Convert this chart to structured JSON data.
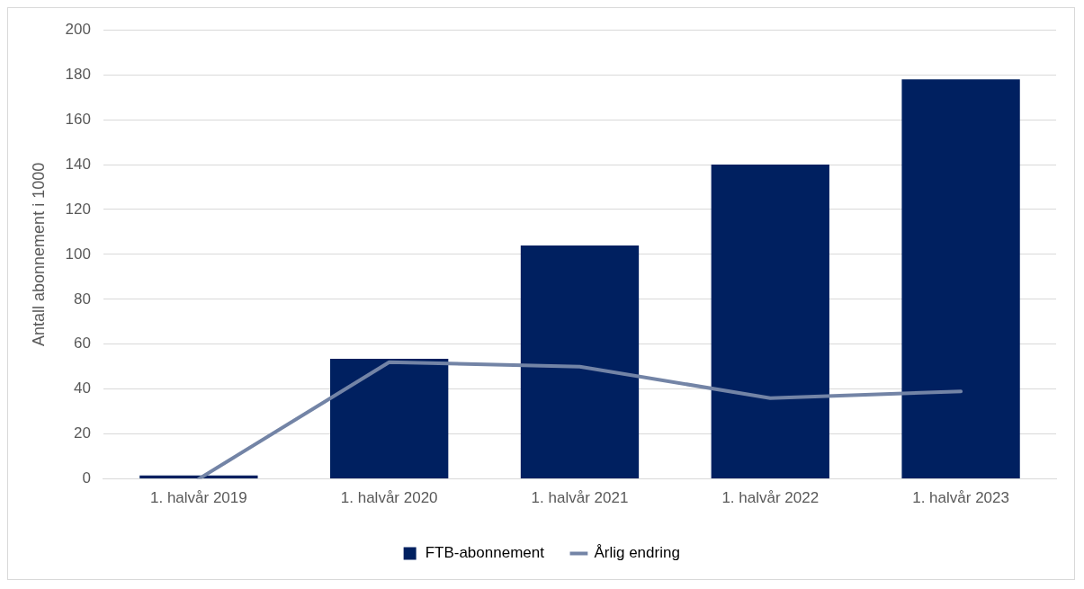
{
  "chart_data": {
    "type": "bar",
    "ylabel": "Antall abonnement i 1000",
    "categories": [
      "1. halvår 2019",
      "1. halvår 2020",
      "1. halvår 2021",
      "1. halvår 2022",
      "1. halvår 2023"
    ],
    "series": [
      {
        "name": "FTB-abonnement",
        "color": "#002060",
        "values": [
          1.5,
          53.5,
          104,
          140,
          178
        ]
      },
      {
        "name": "Årlig endring",
        "type": "line",
        "color": "#7384a6",
        "values": [
          0,
          52,
          50,
          36,
          39
        ]
      }
    ],
    "ylim": [
      0,
      200
    ],
    "yticks": [
      0,
      20,
      40,
      60,
      80,
      100,
      120,
      140,
      160,
      180,
      200
    ],
    "grid": "y",
    "legend": "bottom",
    "marker": "none",
    "line_style": "solid"
  }
}
